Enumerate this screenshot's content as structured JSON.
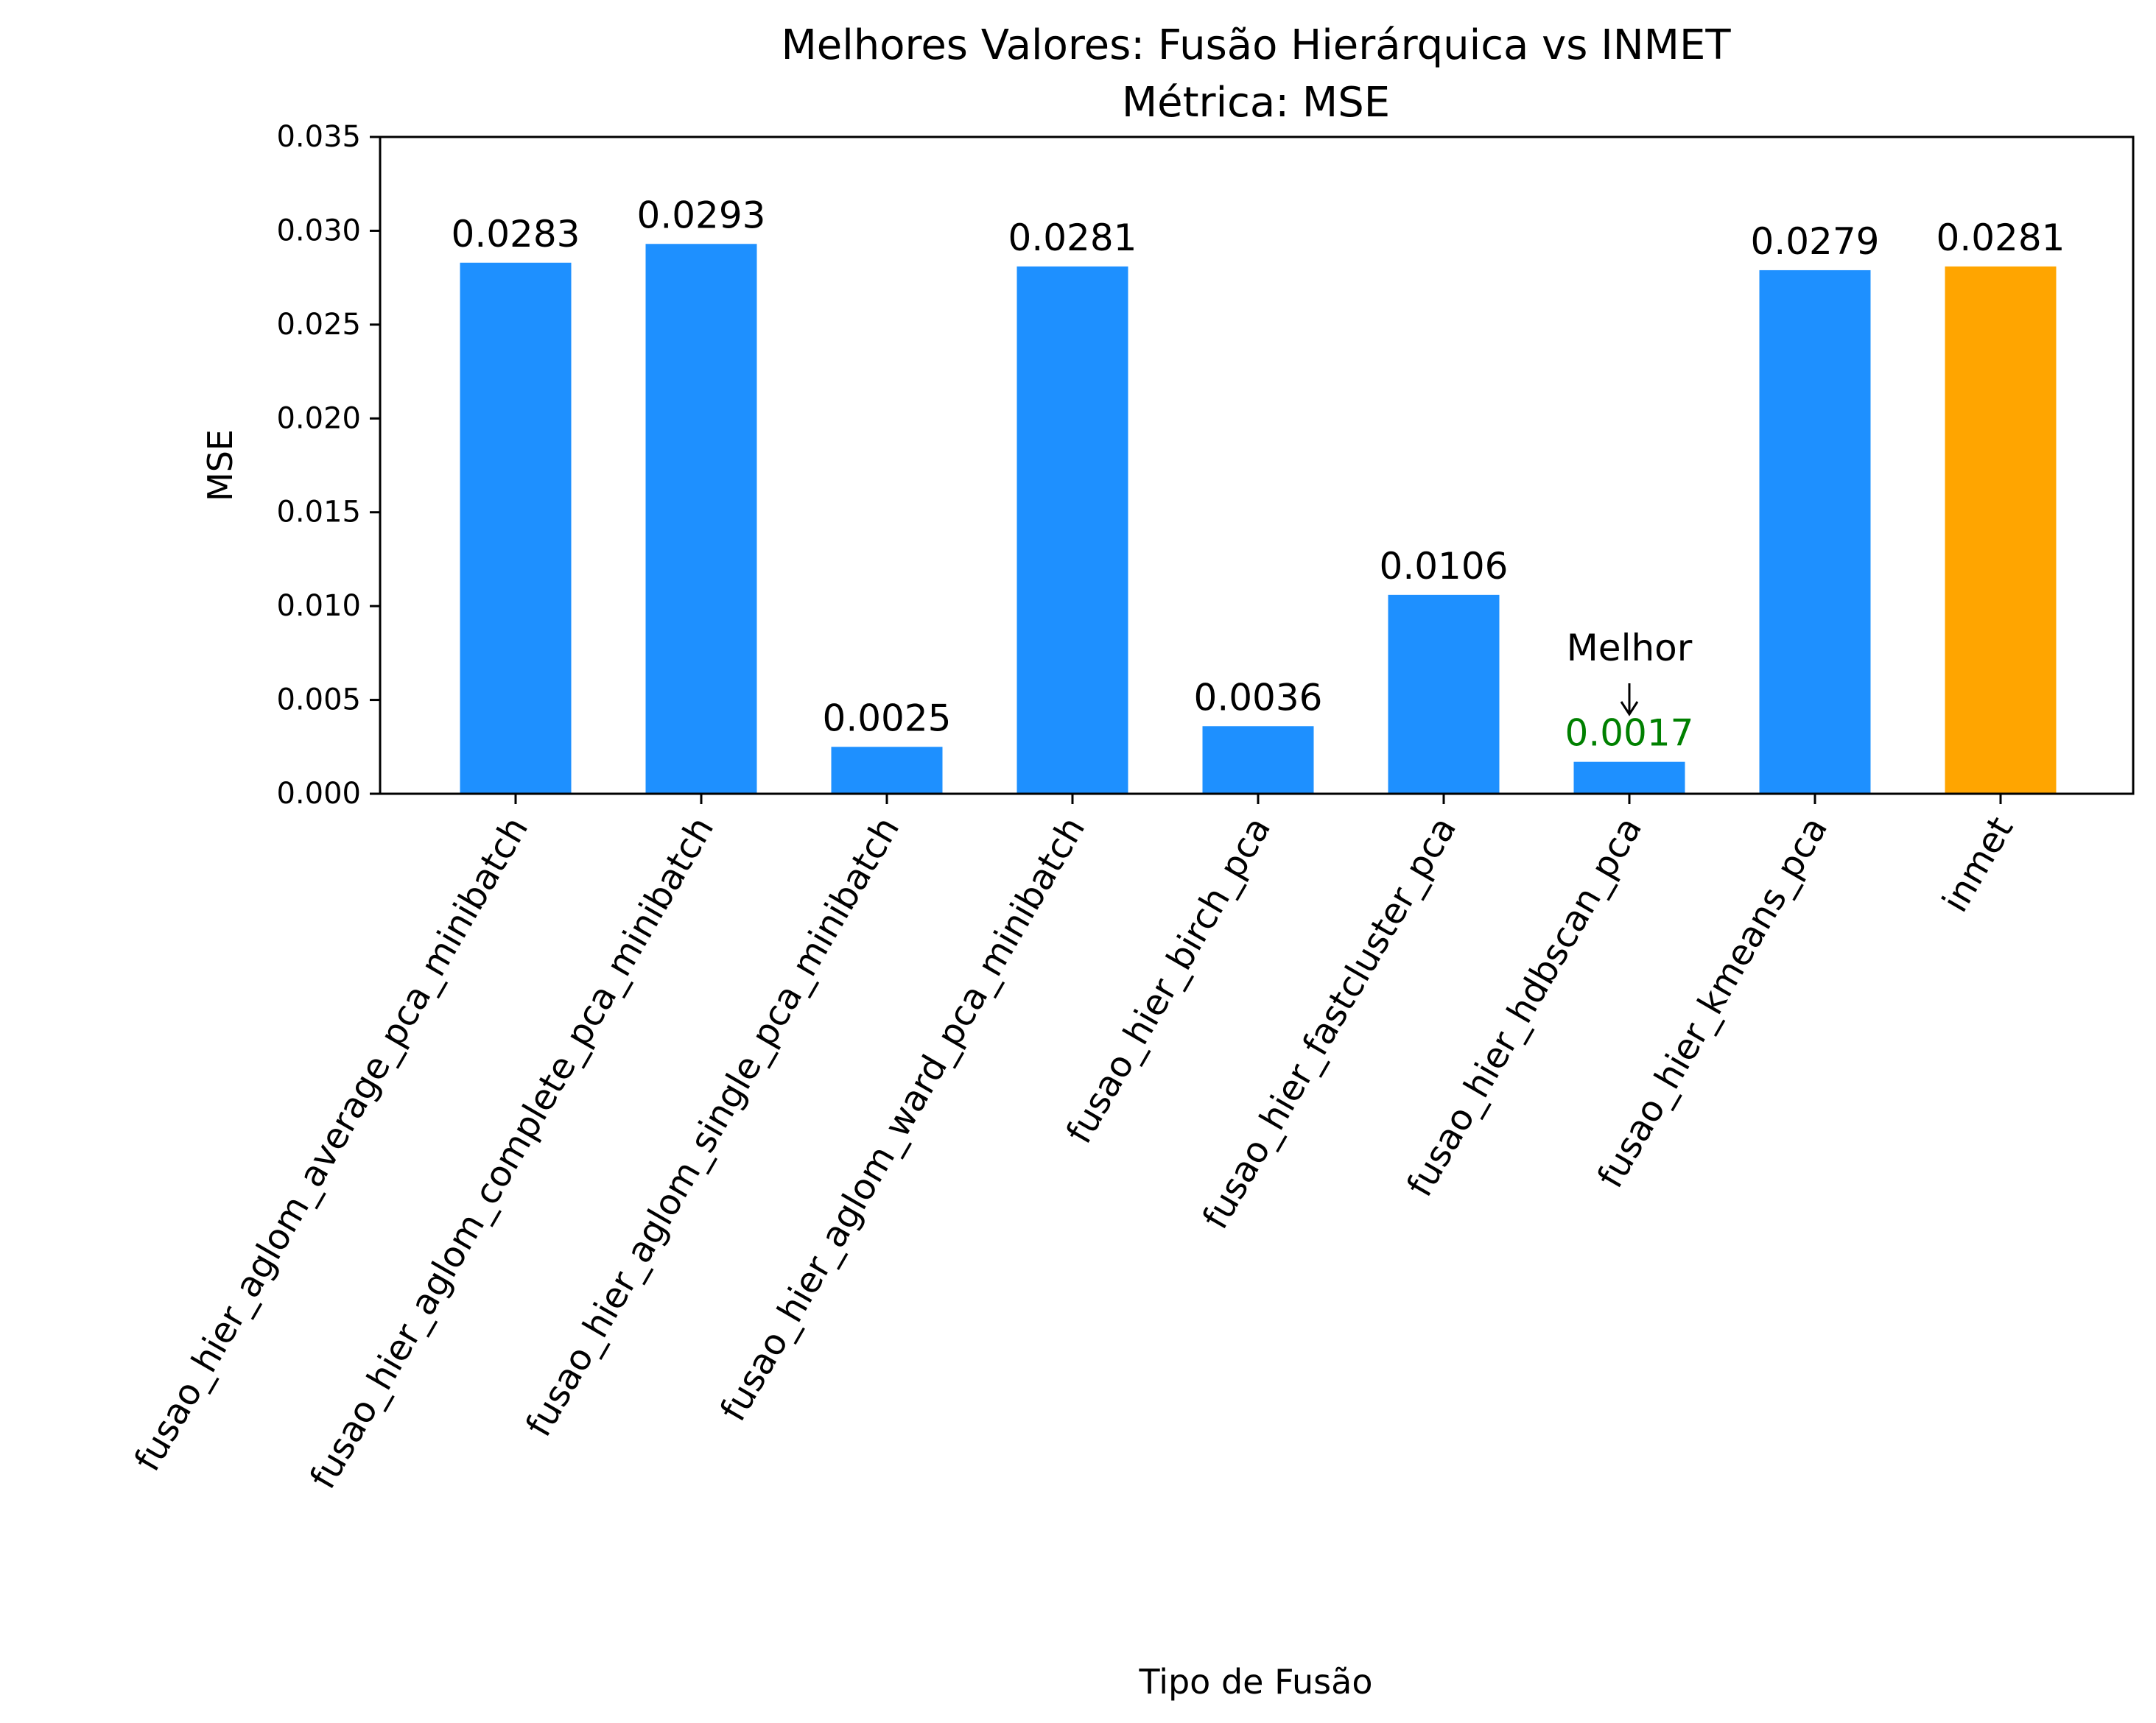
{
  "chart_data": {
    "type": "bar",
    "title": "Melhores Valores: Fusão Hierárquica vs INMET",
    "subtitle": "Métrica: MSE",
    "xlabel": "Tipo de Fusão",
    "ylabel": "MSE",
    "ylim": [
      0,
      0.035
    ],
    "yticks": [
      "0.000",
      "0.005",
      "0.010",
      "0.015",
      "0.020",
      "0.025",
      "0.030",
      "0.035"
    ],
    "grid": false,
    "categories": [
      "fusao_hier_aglom_average_pca_minibatch",
      "fusao_hier_aglom_complete_pca_minibatch",
      "fusao_hier_aglom_single_pca_minibatch",
      "fusao_hier_aglom_ward_pca_minibatch",
      "fusao_hier_birch_pca",
      "fusao_hier_fastcluster_pca",
      "fusao_hier_hdbscan_pca",
      "fusao_hier_kmeans_pca",
      "inmet"
    ],
    "values": [
      0.0283,
      0.0293,
      0.0025,
      0.0281,
      0.0036,
      0.0106,
      0.0017,
      0.0279,
      0.0281
    ],
    "value_labels": [
      "0.0283",
      "0.0293",
      "0.0025",
      "0.0281",
      "0.0036",
      "0.0106",
      "0.0017",
      "0.0279",
      "0.0281"
    ],
    "bar_colors": [
      "#1e90ff",
      "#1e90ff",
      "#1e90ff",
      "#1e90ff",
      "#1e90ff",
      "#1e90ff",
      "#1e90ff",
      "#1e90ff",
      "#ffa500"
    ],
    "label_colors": [
      "#000000",
      "#000000",
      "#000000",
      "#000000",
      "#000000",
      "#000000",
      "#008000",
      "#000000",
      "#000000"
    ],
    "annotation": {
      "text": "Melhor",
      "category_index": 6
    }
  }
}
